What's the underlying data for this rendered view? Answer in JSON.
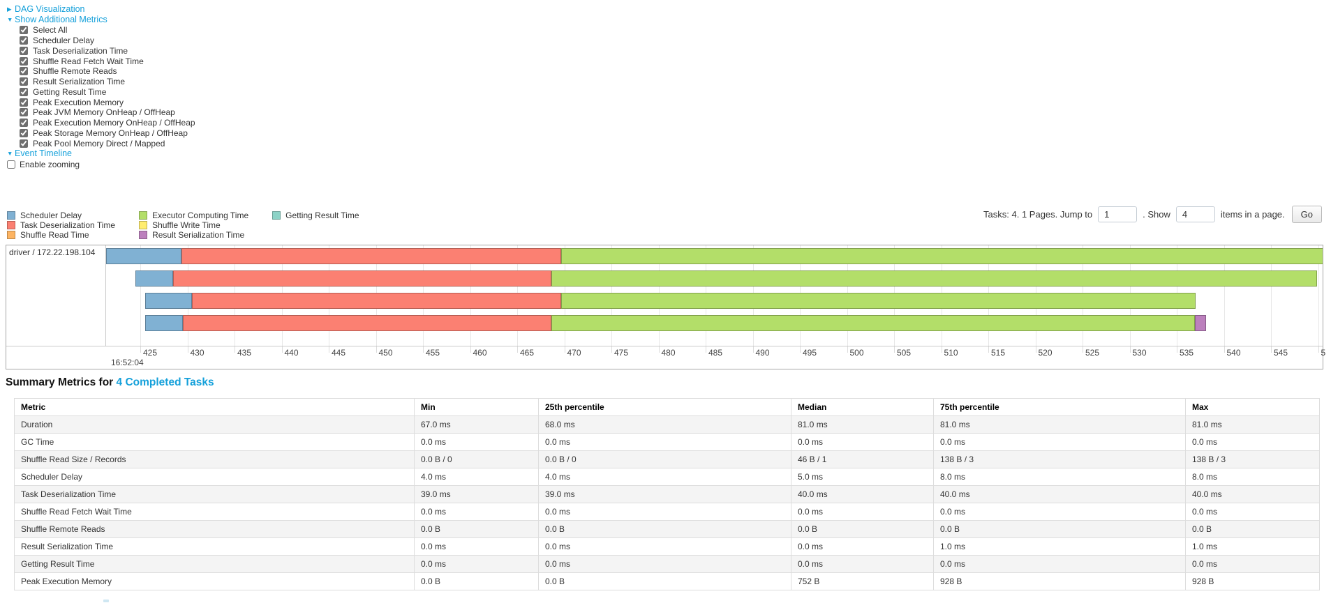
{
  "controls": {
    "dag": {
      "arrow": "▶",
      "label": "DAG Visualization"
    },
    "additional_metrics": {
      "arrow": "▼",
      "label": "Show Additional Metrics"
    },
    "checkboxes": [
      {
        "label": "Select All",
        "checked": true
      },
      {
        "label": "Scheduler Delay",
        "checked": true
      },
      {
        "label": "Task Deserialization Time",
        "checked": true
      },
      {
        "label": "Shuffle Read Fetch Wait Time",
        "checked": true
      },
      {
        "label": "Shuffle Remote Reads",
        "checked": true
      },
      {
        "label": "Result Serialization Time",
        "checked": true
      },
      {
        "label": "Getting Result Time",
        "checked": true
      },
      {
        "label": "Peak Execution Memory",
        "checked": true
      },
      {
        "label": "Peak JVM Memory OnHeap / OffHeap",
        "checked": true
      },
      {
        "label": "Peak Execution Memory OnHeap / OffHeap",
        "checked": true
      },
      {
        "label": "Peak Storage Memory OnHeap / OffHeap",
        "checked": true
      },
      {
        "label": "Peak Pool Memory Direct / Mapped",
        "checked": true
      }
    ],
    "event_timeline": {
      "arrow": "▼",
      "label": "Event Timeline"
    },
    "enable_zooming": {
      "label": "Enable zooming",
      "checked": false
    }
  },
  "legend": {
    "items": [
      {
        "label": "Scheduler Delay",
        "color": "#80B1D3",
        "column": 0
      },
      {
        "label": "Task Deserialization Time",
        "color": "#FB8072",
        "column": 0
      },
      {
        "label": "Shuffle Read Time",
        "color": "#FDB462",
        "column": 0
      },
      {
        "label": "Executor Computing Time",
        "color": "#B3DE69",
        "column": 1
      },
      {
        "label": "Shuffle Write Time",
        "color": "#FFED6F",
        "column": 1
      },
      {
        "label": "Result Serialization Time",
        "color": "#BC80BD",
        "column": 1
      },
      {
        "label": "Getting Result Time",
        "color": "#8DD3C7",
        "column": 2
      }
    ]
  },
  "pagination": {
    "tasks_text": "Tasks: 4. 1 Pages. Jump to",
    "jump_value": "1",
    "show_text": ". Show",
    "show_value": "4",
    "items_text": "items in a page.",
    "go_label": "Go"
  },
  "timeline": {
    "row_label": "driver / 172.22.198.104",
    "axis": {
      "ticks": [
        "425",
        "430",
        "435",
        "440",
        "445",
        "450",
        "455",
        "460",
        "465",
        "470",
        "475",
        "480",
        "485",
        "490",
        "495",
        "500",
        "505",
        "510",
        "515",
        "520",
        "525",
        "530",
        "535",
        "540",
        "545",
        "5"
      ],
      "base_time": "16:52:04"
    },
    "chart_data": {
      "type": "bar",
      "orientation": "horizontal-timeline",
      "x_axis_range": [
        421.4,
        550.8
      ],
      "x_tick_step": 5,
      "grid": true,
      "bars": [
        {
          "task": "task-0",
          "segments": [
            {
              "name": "Scheduler Delay",
              "start": 421.4,
              "end": 429.4
            },
            {
              "name": "Task Deserialization Time",
              "start": 429.4,
              "end": 469.7
            },
            {
              "name": "Executor Computing Time",
              "start": 469.7,
              "end": 550.6
            }
          ]
        },
        {
          "task": "task-1",
          "segments": [
            {
              "name": "Scheduler Delay",
              "start": 424.5,
              "end": 428.5
            },
            {
              "name": "Task Deserialization Time",
              "start": 428.5,
              "end": 468.6
            },
            {
              "name": "Executor Computing Time",
              "start": 468.6,
              "end": 549.9
            }
          ]
        },
        {
          "task": "task-2",
          "segments": [
            {
              "name": "Scheduler Delay",
              "start": 425.5,
              "end": 430.5
            },
            {
              "name": "Task Deserialization Time",
              "start": 430.5,
              "end": 469.7
            },
            {
              "name": "Executor Computing Time",
              "start": 469.7,
              "end": 537.0
            }
          ]
        },
        {
          "task": "task-3",
          "segments": [
            {
              "name": "Scheduler Delay",
              "start": 425.5,
              "end": 429.5
            },
            {
              "name": "Task Deserialization Time",
              "start": 429.5,
              "end": 468.6
            },
            {
              "name": "Executor Computing Time",
              "start": 468.6,
              "end": 536.9
            },
            {
              "name": "Result Serialization Time",
              "start": 536.9,
              "end": 538.1
            }
          ]
        }
      ]
    }
  },
  "summary": {
    "title": "Summary Metrics for",
    "link": "4 Completed Tasks",
    "table": {
      "headers": [
        "Metric",
        "Min",
        "25th percentile",
        "Median",
        "75th percentile",
        "Max"
      ],
      "rows": [
        {
          "metric": "Duration",
          "values": [
            "67.0 ms",
            "68.0 ms",
            "81.0 ms",
            "81.0 ms",
            "81.0 ms"
          ]
        },
        {
          "metric": "GC Time",
          "values": [
            "0.0 ms",
            "0.0 ms",
            "0.0 ms",
            "0.0 ms",
            "0.0 ms"
          ]
        },
        {
          "metric": "Shuffle Read Size / Records",
          "values": [
            "0.0 B / 0",
            "0.0 B / 0",
            "46 B / 1",
            "138 B / 3",
            "138 B / 3"
          ]
        },
        {
          "metric": "Scheduler Delay",
          "values": [
            "4.0 ms",
            "4.0 ms",
            "5.0 ms",
            "8.0 ms",
            "8.0 ms"
          ]
        },
        {
          "metric": "Task Deserialization Time",
          "values": [
            "39.0 ms",
            "39.0 ms",
            "40.0 ms",
            "40.0 ms",
            "40.0 ms"
          ]
        },
        {
          "metric": "Shuffle Read Fetch Wait Time",
          "values": [
            "0.0 ms",
            "0.0 ms",
            "0.0 ms",
            "0.0 ms",
            "0.0 ms"
          ]
        },
        {
          "metric": "Shuffle Remote Reads",
          "values": [
            "0.0 B",
            "0.0 B",
            "0.0 B",
            "0.0 B",
            "0.0 B"
          ]
        },
        {
          "metric": "Result Serialization Time",
          "values": [
            "0.0 ms",
            "0.0 ms",
            "0.0 ms",
            "1.0 ms",
            "1.0 ms"
          ]
        },
        {
          "metric": "Getting Result Time",
          "values": [
            "0.0 ms",
            "0.0 ms",
            "0.0 ms",
            "0.0 ms",
            "0.0 ms"
          ]
        },
        {
          "metric": "Peak Execution Memory",
          "values": [
            "0.0 B",
            "0.0 B",
            "752 B",
            "928 B",
            "928 B"
          ]
        }
      ]
    }
  }
}
